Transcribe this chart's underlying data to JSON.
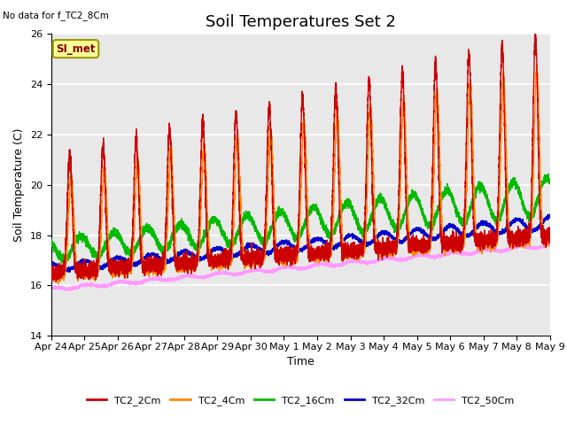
{
  "title": "Soil Temperatures Set 2",
  "no_data_text": "No data for f_TC2_8Cm",
  "si_met_label": "SI_met",
  "xlabel": "Time",
  "ylabel": "Soil Temperature (C)",
  "ylim": [
    14,
    26
  ],
  "yticks": [
    14,
    16,
    18,
    20,
    22,
    24,
    26
  ],
  "xlim": [
    0,
    360
  ],
  "x_tick_labels": [
    "Apr 24",
    "Apr 25",
    "Apr 26",
    "Apr 27",
    "Apr 28",
    "Apr 29",
    "Apr 30",
    "May 1",
    "May 2",
    "May 3",
    "May 4",
    "May 5",
    "May 6",
    "May 7",
    "May 8",
    "May 9"
  ],
  "x_tick_positions": [
    0,
    24,
    48,
    72,
    96,
    120,
    144,
    168,
    192,
    216,
    240,
    264,
    288,
    312,
    336,
    360
  ],
  "colors": {
    "TC2_2Cm": "#cc0000",
    "TC2_4Cm": "#ff8800",
    "TC2_16Cm": "#00bb00",
    "TC2_32Cm": "#0000cc",
    "TC2_50Cm": "#ff99ff"
  },
  "legend_labels": [
    "TC2_2Cm",
    "TC2_4Cm",
    "TC2_16Cm",
    "TC2_32Cm",
    "TC2_50Cm"
  ],
  "plot_bg_color": "#e8e8e8",
  "fig_bg_color": "#ffffff",
  "grid_color": "#ffffff",
  "title_fontsize": 13,
  "axis_label_fontsize": 9,
  "tick_fontsize": 8,
  "linewidth": 1.0
}
